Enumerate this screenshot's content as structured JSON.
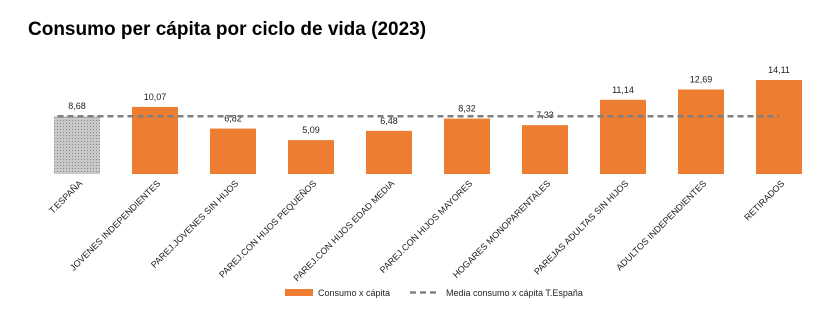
{
  "chart_data": {
    "type": "bar",
    "title": "Consumo per cápita por ciclo de vida (2023)",
    "categories": [
      "T.ESPAÑA",
      "JOVENES INDEPENDIENTES",
      "PAREJ.JOVENES SIN HIJOS",
      "PAREJ.CON HIJOS PEQUEÑOS",
      "PAREJ.CON HIJOS EDAD MEDIA",
      "PAREJ.CON HIJOS MAYORES",
      "HOGARES MONOPARENTALES",
      "PAREJAS ADULTAS SIN HIJOS",
      "ADULTOS INDEPENDIENTES",
      "RETIRADOS"
    ],
    "series": [
      {
        "name": "Consumo x cápita",
        "color": "#ed7d31",
        "colors": [
          "#c8c8c8",
          "#ed7d31",
          "#ed7d31",
          "#ed7d31",
          "#ed7d31",
          "#ed7d31",
          "#ed7d31",
          "#ed7d31",
          "#ed7d31",
          "#ed7d31"
        ],
        "values": [
          8.68,
          10.07,
          6.82,
          5.09,
          6.48,
          8.32,
          7.33,
          11.14,
          12.69,
          14.11
        ],
        "value_labels": [
          "8,68",
          "10,07",
          "6,82",
          "5,09",
          "6,48",
          "8,32",
          "7,33",
          "11,14",
          "12,69",
          "14,11"
        ]
      }
    ],
    "reference_line": {
      "name": "Media consumo x cápita T.España",
      "value": 8.68,
      "color": "#808080",
      "dashed": true
    }
  }
}
